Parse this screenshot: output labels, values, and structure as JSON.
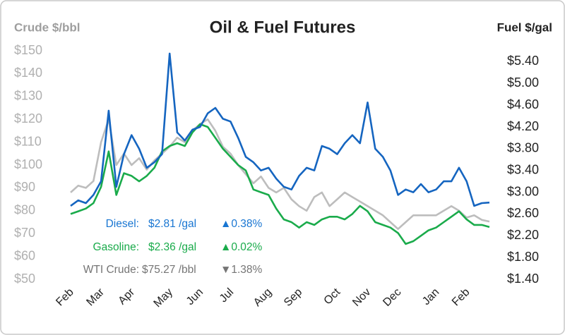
{
  "chart_data": {
    "type": "line",
    "title": "Oil & Fuel Futures",
    "y_label": "Crude $/bbl",
    "y2_label": "Fuel $/gal",
    "categories": [
      "Feb",
      null,
      null,
      null,
      "Mar",
      null,
      null,
      null,
      "Apr",
      null,
      null,
      null,
      null,
      "May",
      null,
      null,
      null,
      "Jun",
      null,
      null,
      null,
      "Jul",
      null,
      null,
      null,
      null,
      "Aug",
      null,
      null,
      null,
      "Sep",
      null,
      null,
      null,
      null,
      "Oct",
      null,
      null,
      null,
      "Nov",
      null,
      null,
      null,
      "Dec",
      null,
      null,
      null,
      null,
      "Jan",
      null,
      null,
      null,
      "Feb",
      null,
      null,
      null
    ],
    "ylim": [
      50,
      150
    ],
    "yticks": [
      {
        "value": 50,
        "label": "$50"
      },
      {
        "value": 60,
        "label": "$60"
      },
      {
        "value": 70,
        "label": "$70"
      },
      {
        "value": 80,
        "label": "$80"
      },
      {
        "value": 90,
        "label": "$90"
      },
      {
        "value": 100,
        "label": "$100"
      },
      {
        "value": 110,
        "label": "$110"
      },
      {
        "value": 120,
        "label": "$120"
      },
      {
        "value": 130,
        "label": "$130"
      },
      {
        "value": 140,
        "label": "$140"
      },
      {
        "value": 150,
        "label": "$150"
      }
    ],
    "y2lim": [
      1.4,
      5.6
    ],
    "y2ticks": [
      {
        "value": 1.4,
        "label": "$1.40"
      },
      {
        "value": 1.8,
        "label": "$1.80"
      },
      {
        "value": 2.2,
        "label": "$2.20"
      },
      {
        "value": 2.6,
        "label": "$2.60"
      },
      {
        "value": 3.0,
        "label": "$3.00"
      },
      {
        "value": 3.4,
        "label": "$3.40"
      },
      {
        "value": 3.8,
        "label": "$3.80"
      },
      {
        "value": 4.2,
        "label": "$4.20"
      },
      {
        "value": 4.6,
        "label": "$4.60"
      },
      {
        "value": 5.0,
        "label": "$5.00"
      },
      {
        "value": 5.4,
        "label": "$5.40"
      }
    ],
    "grid": false,
    "series": [
      {
        "name": "WTI Crude:",
        "axis": "y",
        "color": "#bdbdbd",
        "text_color": "#757575",
        "latest": "$75.27 /bbl",
        "change": "▼1.38%",
        "values": [
          88,
          91,
          90,
          93,
          110,
          120,
          100,
          105,
          100,
          103,
          98,
          102,
          105,
          108,
          112,
          110,
          115,
          118,
          120,
          115,
          108,
          105,
          100,
          96,
          92,
          95,
          90,
          88,
          90,
          85,
          82,
          80,
          86,
          88,
          82,
          85,
          88,
          86,
          84,
          82,
          80,
          78,
          75,
          72,
          75,
          78,
          78,
          78,
          78,
          80,
          82,
          80,
          77,
          78,
          76,
          75.27
        ]
      },
      {
        "name": "Gasoline:",
        "axis": "y2",
        "color": "#1aab4b",
        "text_color": "#1aab4b",
        "latest": "$2.36 /gal",
        "change": "▲0.02%",
        "values": [
          2.6,
          2.65,
          2.7,
          2.8,
          3.1,
          3.75,
          2.95,
          3.35,
          3.3,
          3.2,
          3.3,
          3.45,
          3.75,
          3.85,
          3.9,
          3.85,
          4.1,
          4.25,
          4.2,
          4.0,
          3.8,
          3.65,
          3.5,
          3.4,
          3.05,
          3.0,
          2.95,
          2.7,
          2.5,
          2.45,
          2.35,
          2.45,
          2.4,
          2.5,
          2.55,
          2.55,
          2.5,
          2.6,
          2.75,
          2.65,
          2.45,
          2.4,
          2.35,
          2.25,
          2.05,
          2.1,
          2.2,
          2.3,
          2.35,
          2.45,
          2.55,
          2.65,
          2.5,
          2.4,
          2.4,
          2.36
        ]
      },
      {
        "name": "Diesel:",
        "axis": "y2",
        "color": "#1565c0",
        "text_color": "#1976d2",
        "latest": "$2.81 /gal",
        "change": "▲0.38%",
        "values": [
          2.75,
          2.85,
          2.8,
          2.95,
          3.2,
          4.5,
          3.1,
          3.7,
          4.05,
          3.8,
          3.45,
          3.55,
          3.7,
          5.55,
          4.1,
          3.95,
          4.15,
          4.2,
          4.45,
          4.55,
          4.35,
          4.3,
          4.0,
          3.65,
          3.55,
          3.4,
          3.45,
          3.25,
          3.1,
          3.05,
          3.3,
          3.45,
          3.4,
          3.85,
          3.8,
          3.7,
          3.9,
          4.05,
          3.9,
          4.65,
          3.8,
          3.65,
          3.4,
          2.95,
          3.05,
          3.0,
          3.15,
          3.0,
          3.05,
          3.2,
          3.2,
          3.45,
          3.2,
          2.75,
          2.8,
          2.81
        ]
      }
    ]
  }
}
